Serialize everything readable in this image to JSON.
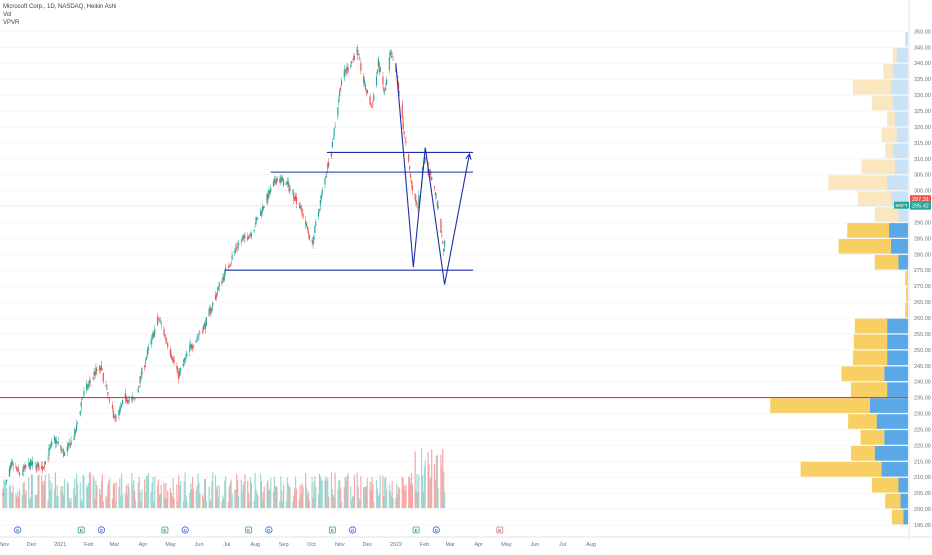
{
  "legend": {
    "title": "Microsoft Corp., 1D, NASDAQ, Heikin Ashi",
    "vol": "Vol",
    "vpvr": "VPVR"
  },
  "colors": {
    "up": "#26a69a",
    "up_light": "#9fd8d2",
    "down": "#ef5350",
    "down_light": "#f6a7a5",
    "pattern_line": "#1f2fa8",
    "support_red": "#e53935",
    "vp_up": "#5aa9e6",
    "vp_down": "#f7cf62",
    "vp_up_light": "#c9e2f6",
    "vp_down_light": "#fbe7bf",
    "axis_text": "#6b6f7b",
    "grid": "#eef0f3"
  },
  "chart_data": {
    "type": "candlestick",
    "price_axis": {
      "ticks": [
        "350.00",
        "345.00",
        "340.00",
        "335.00",
        "330.00",
        "325.00",
        "320.00",
        "315.00",
        "310.00",
        "305.00",
        "300.00",
        "295.00",
        "290.00",
        "285.00",
        "280.00",
        "275.00",
        "270.00",
        "265.00",
        "260.00",
        "255.00",
        "250.00",
        "245.00",
        "240.00",
        "235.00",
        "230.00",
        "225.00",
        "220.00",
        "215.00",
        "210.00",
        "205.00",
        "200.00",
        "195.00"
      ],
      "ylim": [
        193,
        352
      ]
    },
    "time_axis": {
      "labels": [
        "Nov",
        "Dec",
        "2021",
        "Feb",
        "Mar",
        "Apr",
        "May",
        "Jun",
        "Jul",
        "Aug",
        "Sep",
        "Oct",
        "Nov",
        "Dec",
        "2022",
        "Feb",
        "Mar",
        "Apr",
        "May",
        "Jun",
        "Jul",
        "Aug"
      ]
    },
    "price_labels": {
      "last": "297.31",
      "symbol": "MSFT",
      "close": "295.42",
      "last_value": 297.31,
      "close_value": 295.42
    },
    "series_waypoints": [
      {
        "date": "2020-11-02",
        "price": 205
      },
      {
        "date": "2020-11-12",
        "price": 214
      },
      {
        "date": "2020-11-20",
        "price": 211
      },
      {
        "date": "2020-12-01",
        "price": 214
      },
      {
        "date": "2020-12-15",
        "price": 213
      },
      {
        "date": "2020-12-28",
        "price": 222
      },
      {
        "date": "2021-01-08",
        "price": 217
      },
      {
        "date": "2021-01-20",
        "price": 224
      },
      {
        "date": "2021-01-27",
        "price": 235
      },
      {
        "date": "2021-02-10",
        "price": 243
      },
      {
        "date": "2021-02-17",
        "price": 244
      },
      {
        "date": "2021-02-26",
        "price": 233
      },
      {
        "date": "2021-03-05",
        "price": 228
      },
      {
        "date": "2021-03-15",
        "price": 235
      },
      {
        "date": "2021-03-25",
        "price": 234
      },
      {
        "date": "2021-04-05",
        "price": 246
      },
      {
        "date": "2021-04-20",
        "price": 260
      },
      {
        "date": "2021-04-30",
        "price": 252
      },
      {
        "date": "2021-05-12",
        "price": 242
      },
      {
        "date": "2021-05-25",
        "price": 251
      },
      {
        "date": "2021-06-10",
        "price": 258
      },
      {
        "date": "2021-06-25",
        "price": 270
      },
      {
        "date": "2021-07-15",
        "price": 283
      },
      {
        "date": "2021-07-30",
        "price": 287
      },
      {
        "date": "2021-08-20",
        "price": 300
      },
      {
        "date": "2021-08-27",
        "price": 304
      },
      {
        "date": "2021-09-07",
        "price": 302
      },
      {
        "date": "2021-09-20",
        "price": 296
      },
      {
        "date": "2021-10-04",
        "price": 283
      },
      {
        "date": "2021-10-14",
        "price": 298
      },
      {
        "date": "2021-10-26",
        "price": 315
      },
      {
        "date": "2021-11-05",
        "price": 335
      },
      {
        "date": "2021-11-22",
        "price": 344
      },
      {
        "date": "2021-11-30",
        "price": 333
      },
      {
        "date": "2021-12-08",
        "price": 326
      },
      {
        "date": "2021-12-15",
        "price": 340
      },
      {
        "date": "2021-12-22",
        "price": 330
      },
      {
        "date": "2021-12-28",
        "price": 343
      },
      {
        "date": "2022-01-05",
        "price": 335
      },
      {
        "date": "2022-01-12",
        "price": 318
      },
      {
        "date": "2022-01-20",
        "price": 302
      },
      {
        "date": "2022-01-27",
        "price": 295
      },
      {
        "date": "2022-02-03",
        "price": 310
      },
      {
        "date": "2022-02-10",
        "price": 305
      },
      {
        "date": "2022-02-18",
        "price": 294
      },
      {
        "date": "2022-02-24",
        "price": 280
      },
      {
        "date": "2022-02-28",
        "price": 295
      }
    ],
    "events": [
      {
        "date": "2020-11-18",
        "kind": "dividend",
        "label": "D"
      },
      {
        "date": "2021-01-26",
        "kind": "earnings",
        "label": "E"
      },
      {
        "date": "2021-02-17",
        "kind": "dividend",
        "label": "D"
      },
      {
        "date": "2021-04-27",
        "kind": "earnings",
        "label": "E"
      },
      {
        "date": "2021-05-19",
        "kind": "dividend",
        "label": "D"
      },
      {
        "date": "2021-07-27",
        "kind": "earnings",
        "label": "E"
      },
      {
        "date": "2021-08-18",
        "kind": "dividend",
        "label": "D"
      },
      {
        "date": "2021-10-26",
        "kind": "earnings",
        "label": "E"
      },
      {
        "date": "2021-11-17",
        "kind": "dividend",
        "label": "D"
      },
      {
        "date": "2022-01-25",
        "kind": "earnings",
        "label": "E"
      },
      {
        "date": "2022-02-16",
        "kind": "dividend",
        "label": "D"
      },
      {
        "date": "2022-04-26",
        "kind": "earnings-upcoming",
        "label": "E"
      }
    ],
    "volume_profile": [
      {
        "price": 347.5,
        "up": 3,
        "down": 0
      },
      {
        "price": 342.5,
        "up": 12,
        "down": 4
      },
      {
        "price": 337.5,
        "up": 16,
        "down": 10
      },
      {
        "price": 332.5,
        "up": 18,
        "down": 40
      },
      {
        "price": 327.5,
        "up": 16,
        "down": 22
      },
      {
        "price": 322.5,
        "up": 14,
        "down": 8
      },
      {
        "price": 317.5,
        "up": 12,
        "down": 16
      },
      {
        "price": 312.5,
        "up": 16,
        "down": 8
      },
      {
        "price": 307.5,
        "up": 14,
        "down": 35
      },
      {
        "price": 302.5,
        "up": 22,
        "down": 62
      },
      {
        "price": 297.5,
        "up": 18,
        "down": 35
      },
      {
        "price": 292.5,
        "up": 10,
        "down": 25
      },
      {
        "price": 287.5,
        "up": 20,
        "down": 44
      },
      {
        "price": 282.5,
        "up": 18,
        "down": 55
      },
      {
        "price": 277.5,
        "up": 10,
        "down": 25
      },
      {
        "price": 272.5,
        "up": 0,
        "down": 3
      },
      {
        "price": 267.5,
        "up": 0,
        "down": 2
      },
      {
        "price": 262.5,
        "up": 0,
        "down": 3
      },
      {
        "price": 257.5,
        "up": 22,
        "down": 34
      },
      {
        "price": 252.5,
        "up": 22,
        "down": 35
      },
      {
        "price": 247.5,
        "up": 22,
        "down": 36
      },
      {
        "price": 242.5,
        "up": 25,
        "down": 45
      },
      {
        "price": 237.5,
        "up": 22,
        "down": 38
      },
      {
        "price": 232.5,
        "up": 40,
        "down": 105
      },
      {
        "price": 227.5,
        "up": 33,
        "down": 30
      },
      {
        "price": 222.5,
        "up": 25,
        "down": 25
      },
      {
        "price": 217.5,
        "up": 35,
        "down": 25
      },
      {
        "price": 212.5,
        "up": 28,
        "down": 85
      },
      {
        "price": 207.5,
        "up": 10,
        "down": 28
      },
      {
        "price": 202.5,
        "up": 8,
        "down": 16
      },
      {
        "price": 197.5,
        "up": 5,
        "down": 12
      }
    ],
    "drawings": [
      {
        "kind": "horizontal",
        "price": 312.0,
        "from": "2021-10-20",
        "to": "2022-03-28"
      },
      {
        "kind": "horizontal",
        "price": 305.8,
        "from": "2021-08-20",
        "to": "2022-03-28"
      },
      {
        "kind": "horizontal",
        "price": 275.0,
        "from": "2021-07-01",
        "to": "2022-03-28"
      },
      {
        "kind": "horizontal_full",
        "price": 235.0
      },
      {
        "kind": "polyline",
        "points": [
          {
            "date": "2022-01-03",
            "price": 340
          },
          {
            "date": "2022-01-22",
            "price": 276
          },
          {
            "date": "2022-02-04",
            "price": 313.5
          },
          {
            "date": "2022-02-25",
            "price": 270.5
          },
          {
            "date": "2022-03-24",
            "price": 311.5
          }
        ],
        "arrow_end": true
      }
    ],
    "xlabel": "",
    "ylabel": ""
  }
}
